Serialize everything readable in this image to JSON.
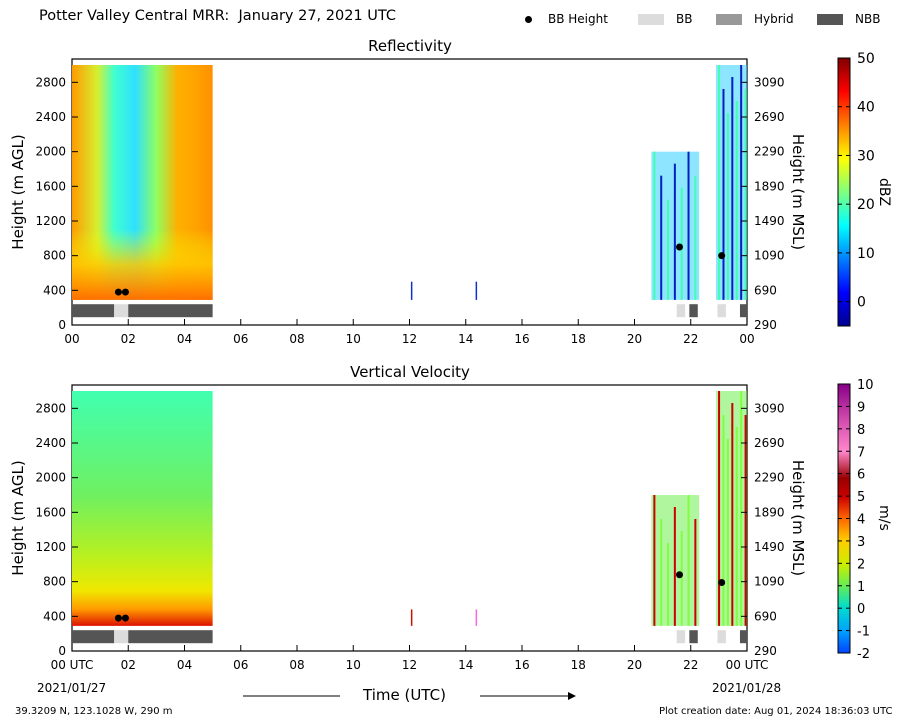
{
  "header": {
    "title": "Potter Valley Central MRR:  January 27, 2021 UTC",
    "legend": [
      {
        "label": "BB Height",
        "kind": "dot",
        "color": "#000000"
      },
      {
        "label": "BB",
        "kind": "box",
        "color": "#dcdcdc"
      },
      {
        "label": "Hybrid",
        "kind": "box",
        "color": "#999999"
      },
      {
        "label": "NBB",
        "kind": "box",
        "color": "#555555"
      }
    ]
  },
  "chart_data": [
    {
      "type": "heatmap",
      "title": "Reflectivity",
      "ylabel": "Height (m AGL)",
      "ylabel_right": "Height (m MSL)",
      "ylim": [
        0,
        3000
      ],
      "xlim_hours": [
        0,
        24
      ],
      "yticks": [
        "0",
        "400",
        "800",
        "1200",
        "1600",
        "2000",
        "2400",
        "2800"
      ],
      "yticks_right": [
        "290",
        "690",
        "1090",
        "1490",
        "1890",
        "2290",
        "2690",
        "3090"
      ],
      "xticks": [
        "00",
        "02",
        "04",
        "06",
        "08",
        "10",
        "12",
        "14",
        "16",
        "18",
        "20",
        "22",
        "00"
      ],
      "colorbar": {
        "label": "dBZ",
        "ticks": [
          "0",
          "10",
          "20",
          "30",
          "40",
          "50"
        ],
        "range": [
          -5,
          50
        ],
        "colormap": "jet"
      },
      "data_regions": [
        {
          "from_h": 0.0,
          "to_h": 5.0,
          "bottom_m": 290,
          "top_m": 3000,
          "desc": "continuous echo 25-35 dBZ, ~10 dBZ column 01-02 UTC"
        },
        {
          "from_h": 12.05,
          "to_h": 12.1,
          "bottom_m": 290,
          "top_m": 500
        },
        {
          "from_h": 14.35,
          "to_h": 14.4,
          "bottom_m": 290,
          "top_m": 500
        },
        {
          "from_h": 20.6,
          "to_h": 22.3,
          "bottom_m": 290,
          "top_m": 2000
        },
        {
          "from_h": 22.9,
          "to_h": 24.0,
          "bottom_m": 290,
          "top_m": 3000
        }
      ],
      "bb_height_points": [
        {
          "time_h": 1.65,
          "height_m": 380
        },
        {
          "time_h": 1.9,
          "height_m": 380
        },
        {
          "time_h": 21.6,
          "height_m": 900
        },
        {
          "time_h": 23.1,
          "height_m": 800
        }
      ],
      "bb_classification": [
        {
          "from_h": 0.0,
          "to_h": 1.5,
          "class": "NBB"
        },
        {
          "from_h": 1.5,
          "to_h": 2.0,
          "class": "BB"
        },
        {
          "from_h": 2.0,
          "to_h": 5.0,
          "class": "NBB"
        },
        {
          "from_h": 21.5,
          "to_h": 21.8,
          "class": "BB"
        },
        {
          "from_h": 21.95,
          "to_h": 22.25,
          "class": "NBB"
        },
        {
          "from_h": 22.95,
          "to_h": 23.25,
          "class": "BB"
        },
        {
          "from_h": 23.75,
          "to_h": 24.0,
          "class": "NBB"
        }
      ]
    },
    {
      "type": "heatmap",
      "title": "Vertical Velocity",
      "ylabel": "Height (m AGL)",
      "ylabel_right": "Height (m MSL)",
      "ylim": [
        0,
        3000
      ],
      "xlim_hours": [
        0,
        24
      ],
      "yticks": [
        "0",
        "400",
        "800",
        "1200",
        "1600",
        "2000",
        "2400",
        "2800"
      ],
      "yticks_right": [
        "290",
        "690",
        "1090",
        "1490",
        "1890",
        "2290",
        "2690",
        "3090"
      ],
      "xticks": [
        "00 UTC",
        "02",
        "04",
        "06",
        "08",
        "10",
        "12",
        "14",
        "16",
        "18",
        "20",
        "22",
        "00 UTC"
      ],
      "xdates": [
        "2021/01/27",
        "2021/01/28"
      ],
      "colorbar": {
        "label": "m/s",
        "ticks": [
          "-2",
          "-1",
          "0",
          "1",
          "2",
          "3",
          "4",
          "5",
          "6",
          "7",
          "8",
          "9",
          "10"
        ],
        "range": [
          -2,
          10
        ],
        "colormap": "velocity"
      },
      "data_regions": [
        {
          "from_h": 0.0,
          "to_h": 5.0,
          "bottom_m": 290,
          "top_m": 3000,
          "desc": "0-2 m/s aloft, 2-4 m/s near surface, 5+ m/s below 400 m"
        },
        {
          "from_h": 12.05,
          "to_h": 12.1,
          "bottom_m": 290,
          "top_m": 480
        },
        {
          "from_h": 14.35,
          "to_h": 14.4,
          "bottom_m": 290,
          "top_m": 480
        },
        {
          "from_h": 20.6,
          "to_h": 22.3,
          "bottom_m": 290,
          "top_m": 1800
        },
        {
          "from_h": 22.9,
          "to_h": 24.0,
          "bottom_m": 290,
          "top_m": 3000
        }
      ],
      "bb_height_points": [
        {
          "time_h": 1.65,
          "height_m": 380
        },
        {
          "time_h": 1.9,
          "height_m": 380
        },
        {
          "time_h": 21.6,
          "height_m": 880
        },
        {
          "time_h": 23.1,
          "height_m": 790
        }
      ],
      "bb_classification": [
        {
          "from_h": 0.0,
          "to_h": 1.5,
          "class": "NBB"
        },
        {
          "from_h": 1.5,
          "to_h": 2.0,
          "class": "BB"
        },
        {
          "from_h": 2.0,
          "to_h": 5.0,
          "class": "NBB"
        },
        {
          "from_h": 21.5,
          "to_h": 21.8,
          "class": "BB"
        },
        {
          "from_h": 21.95,
          "to_h": 22.25,
          "class": "NBB"
        },
        {
          "from_h": 22.95,
          "to_h": 23.25,
          "class": "BB"
        },
        {
          "from_h": 23.75,
          "to_h": 24.0,
          "class": "NBB"
        }
      ]
    }
  ],
  "xlabel": "Time (UTC)",
  "footer": {
    "location": "39.3209 N, 123.1028 W, 290 m",
    "creation": "Plot creation date: Aug 01, 2024 18:36:03 UTC"
  }
}
